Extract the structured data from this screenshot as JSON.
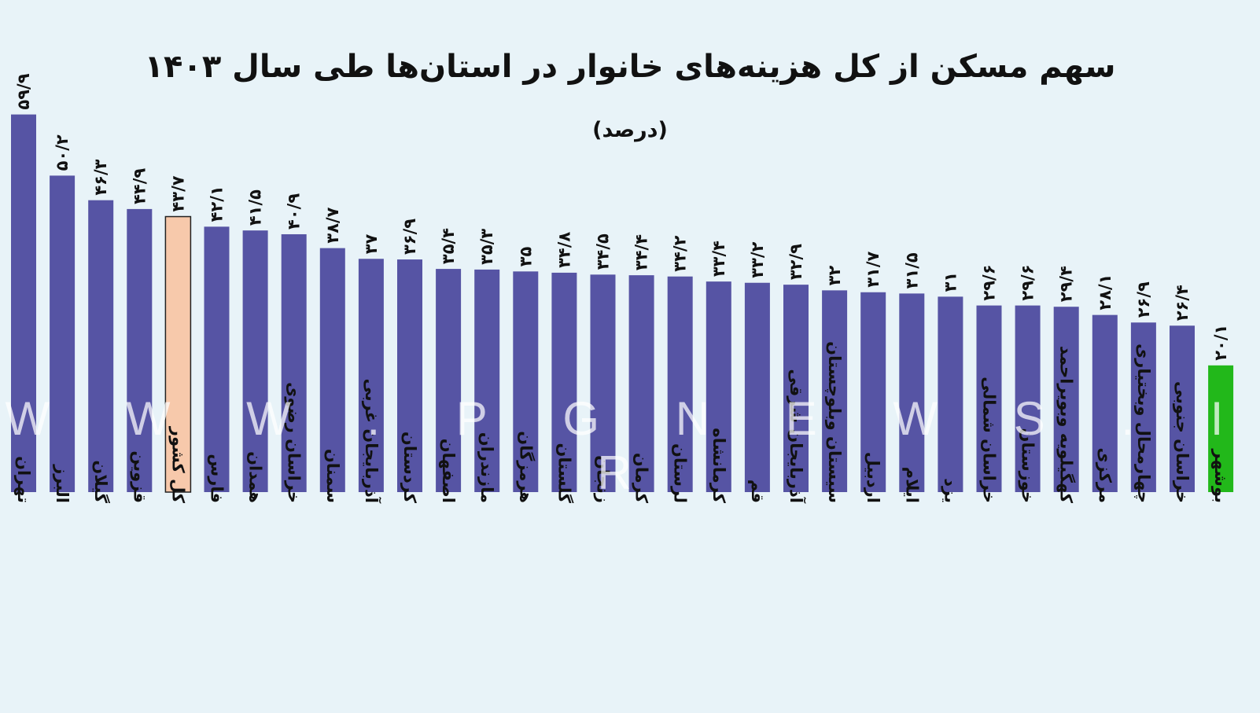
{
  "chart_data": {
    "type": "bar",
    "title": "سهم مسکن از کل هزینه‌های خانوار در استان‌ها طی سال ۱۴۰۳",
    "subtitle": "(درصد)",
    "categories": [
      "تهران",
      "البرز",
      "گیلان",
      "قزوین",
      "کل کشور",
      "فارس",
      "همدان",
      "خراسان رضوی",
      "سمنان",
      "آذربایجان غربی",
      "کردستان",
      "اصفهان",
      "مازندران",
      "هرمزگان",
      "گلستان",
      "زنجان",
      "کرمان",
      "لرستان",
      "کرمانشاه",
      "قم",
      "آذربایجان شرقی",
      "سیستان وبلوچستان",
      "اردبیل",
      "ایلام",
      "یزد",
      "خراسان شمالی",
      "خوزستان",
      "کهگیلویه وبویراحمد",
      "مرکزی",
      "چهارمحال وبختیاری",
      "خراسان جنوبی",
      "بوشهر"
    ],
    "values": [
      59.9,
      50.2,
      46.3,
      44.9,
      43.7,
      42.1,
      41.5,
      40.9,
      38.7,
      37,
      36.9,
      35.4,
      35.3,
      35,
      34.8,
      34.5,
      34.4,
      34.2,
      33.4,
      33.2,
      32.9,
      32,
      31.7,
      31.5,
      31,
      29.6,
      29.6,
      29.4,
      28.1,
      26.9,
      26.4,
      20.1
    ],
    "value_labels": [
      "۵۹/۹",
      "۵۰/۲",
      "۴۶/۳",
      "۴۴/۹",
      "۴۳/۷",
      "۴۲/۱",
      "۴۱/۵",
      "۴۰/۹",
      "۳۸/۷",
      "۳۷",
      "۳۶/۹",
      "۳۵/۴",
      "۳۵/۳",
      "۳۵",
      "۳۴/۸",
      "۳۴/۵",
      "۳۴/۴",
      "۳۴/۲",
      "۳۳/۴",
      "۳۳/۲",
      "۳۲/۹",
      "۳۲",
      "۳۱/۷",
      "۳۱/۵",
      "۳۱",
      "۲۹/۶",
      "۲۹/۶",
      "۲۹/۴",
      "۲۸/۱",
      "۲۶/۹",
      "۲۶/۴",
      "۲۰/۱"
    ],
    "colors": {
      "default": "#5654a4",
      "national": "#f7c9ab",
      "lowest": "#22b81a",
      "background": "#e8f3f8"
    },
    "highlight": {
      "national_index": 4,
      "lowest_index": 31
    },
    "ylim": [
      0,
      60
    ],
    "grid": false,
    "legend": "none"
  },
  "watermark": "W W W . P G N E W S . I R"
}
